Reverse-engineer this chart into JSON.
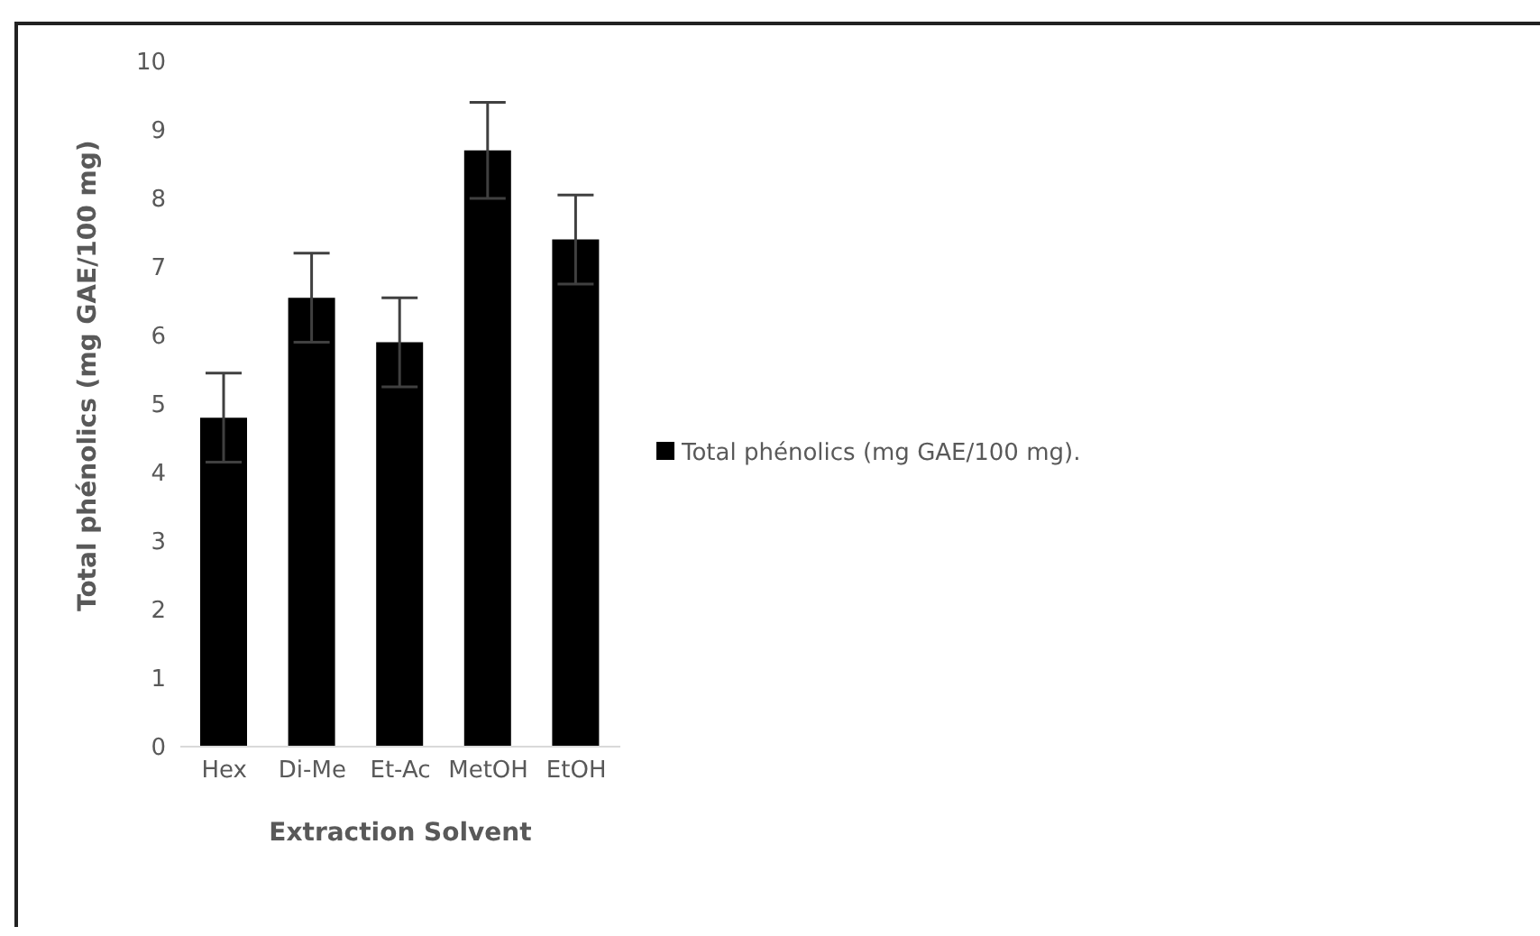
{
  "chart_data": {
    "type": "bar",
    "xlabel": "Extraction Solvent",
    "ylabel": "Total phénolics  (mg GAE/100 mg)",
    "categories": [
      "Hex",
      "Di-Me",
      "Et-Ac",
      "MetOH",
      "EtOH"
    ],
    "series": [
      {
        "name": "Total phénolics  (mg GAE/100 mg).",
        "color": "#000000",
        "values": [
          4.8,
          6.55,
          5.9,
          8.7,
          7.4
        ],
        "errors": [
          0.65,
          0.65,
          0.65,
          0.7,
          0.65
        ]
      }
    ],
    "ylim": [
      0,
      10
    ],
    "yticks": [
      0,
      1,
      2,
      3,
      4,
      5,
      6,
      7,
      8,
      9,
      10
    ],
    "legend": "right"
  }
}
